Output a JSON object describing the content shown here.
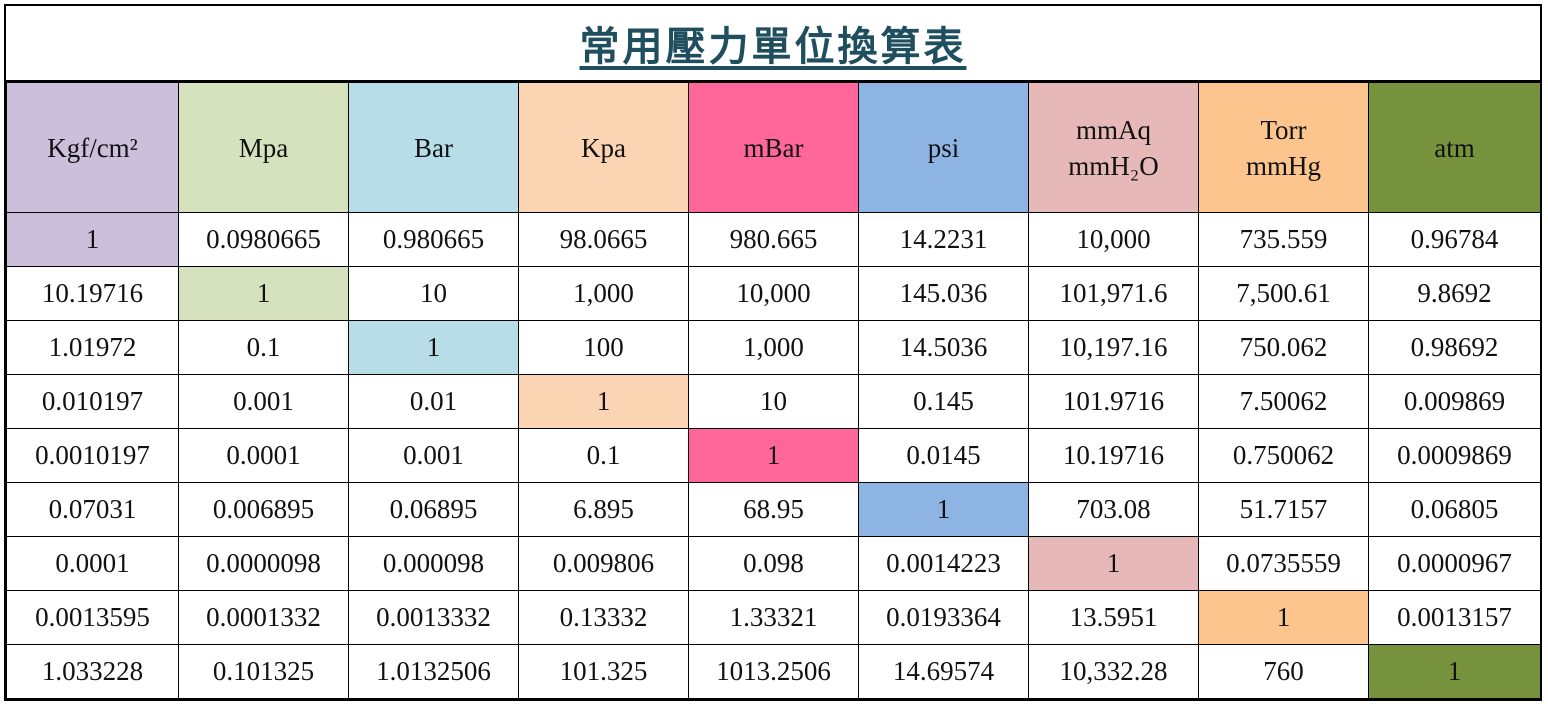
{
  "title": "常用壓力單位換算表",
  "headers": [
    {
      "lines": [
        "Kgf/cm²"
      ],
      "color": "#cbbfdc"
    },
    {
      "lines": [
        "Mpa"
      ],
      "color": "#d6e2bd"
    },
    {
      "lines": [
        "Bar"
      ],
      "color": "#b7dde8"
    },
    {
      "lines": [
        "Kpa"
      ],
      "color": "#fbd4b4"
    },
    {
      "lines": [
        "mBar"
      ],
      "color": "#ff6699"
    },
    {
      "lines": [
        "psi"
      ],
      "color": "#8eb4e3"
    },
    {
      "lines": [
        "mmAq",
        "mmH₂O"
      ],
      "color": "#e6b9b8"
    },
    {
      "lines": [
        "Torr",
        "mmHg"
      ],
      "color": "#fcc58e"
    },
    {
      "lines": [
        "atm"
      ],
      "color": "#76923c"
    }
  ],
  "rows": [
    [
      "1",
      "0.0980665",
      "0.980665",
      "98.0665",
      "980.665",
      "14.2231",
      "10,000",
      "735.559",
      "0.96784"
    ],
    [
      "10.19716",
      "1",
      "10",
      "1,000",
      "10,000",
      "145.036",
      "101,971.6",
      "7,500.61",
      "9.8692"
    ],
    [
      "1.01972",
      "0.1",
      "1",
      "100",
      "1,000",
      "14.5036",
      "10,197.16",
      "750.062",
      "0.98692"
    ],
    [
      "0.010197",
      "0.001",
      "0.01",
      "1",
      "10",
      "0.145",
      "101.9716",
      "7.50062",
      "0.009869"
    ],
    [
      "0.0010197",
      "0.0001",
      "0.001",
      "0.1",
      "1",
      "0.0145",
      "10.19716",
      "0.750062",
      "0.0009869"
    ],
    [
      "0.07031",
      "0.006895",
      "0.06895",
      "6.895",
      "68.95",
      "1",
      "703.08",
      "51.7157",
      "0.06805"
    ],
    [
      "0.0001",
      "0.0000098",
      "0.000098",
      "0.009806",
      "0.098",
      "0.0014223",
      "1",
      "0.0735559",
      "0.0000967"
    ],
    [
      "0.0013595",
      "0.0001332",
      "0.0013332",
      "0.13332",
      "1.33321",
      "0.0193364",
      "13.5951",
      "1",
      "0.0013157"
    ],
    [
      "1.033228",
      "0.101325",
      "1.0132506",
      "101.325",
      "1013.2506",
      "14.69574",
      "10,332.28",
      "760",
      "1"
    ]
  ]
}
